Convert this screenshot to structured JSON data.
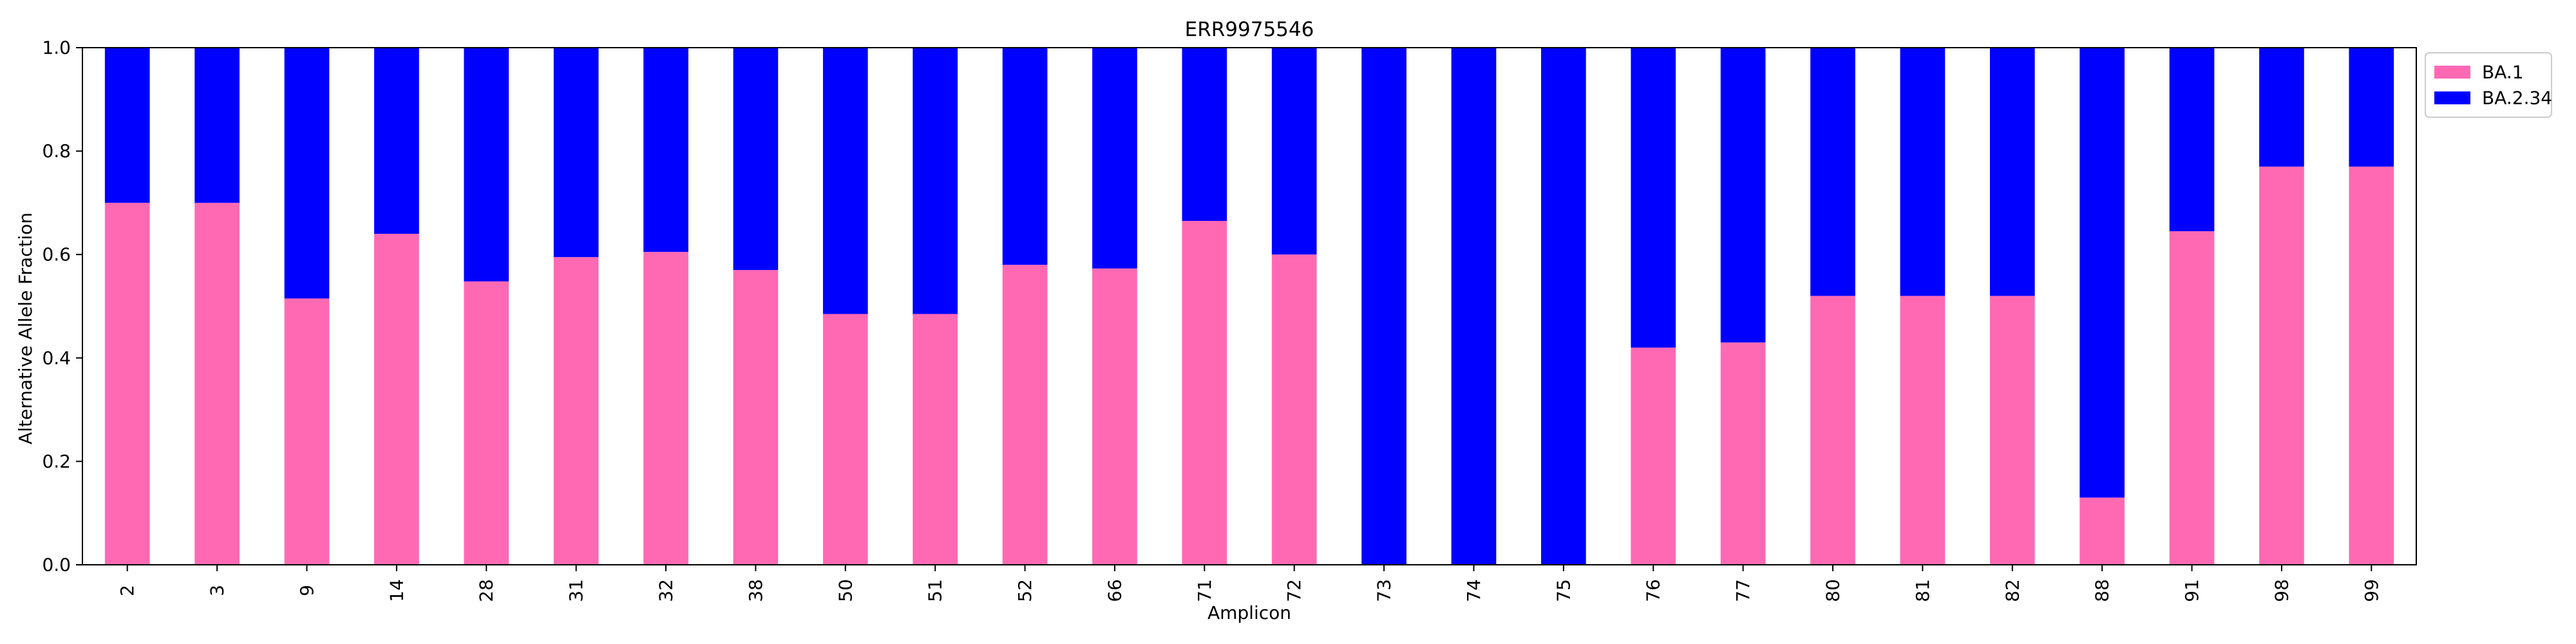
{
  "chart_data": {
    "type": "bar",
    "stacked": true,
    "title": "ERR9975546",
    "xlabel": "Amplicon",
    "ylabel": "Alternative Allele Fraction",
    "ylim": [
      0,
      1.0
    ],
    "yticks": [
      "0.0",
      "0.2",
      "0.4",
      "0.6",
      "0.8",
      "1.0"
    ],
    "grid": false,
    "legend_position": "top-right, outside plot",
    "categories": [
      "2",
      "3",
      "9",
      "14",
      "28",
      "31",
      "32",
      "38",
      "50",
      "51",
      "52",
      "66",
      "71",
      "72",
      "73",
      "74",
      "75",
      "76",
      "77",
      "80",
      "81",
      "82",
      "88",
      "91",
      "98",
      "99"
    ],
    "series": [
      {
        "name": "BA.1",
        "color": "#ff69b4",
        "values": [
          0.7,
          0.7,
          0.515,
          0.64,
          0.548,
          0.595,
          0.605,
          0.57,
          0.485,
          0.485,
          0.58,
          0.573,
          0.665,
          0.6,
          0.0,
          0.0,
          0.0,
          0.42,
          0.43,
          0.52,
          0.52,
          0.52,
          0.13,
          0.645,
          0.77,
          0.77
        ]
      },
      {
        "name": "BA.2.34",
        "color": "#0000ff",
        "values": [
          0.3,
          0.3,
          0.485,
          0.36,
          0.452,
          0.405,
          0.395,
          0.43,
          0.515,
          0.515,
          0.42,
          0.427,
          0.335,
          0.4,
          1.0,
          1.0,
          1.0,
          0.58,
          0.57,
          0.48,
          0.48,
          0.48,
          0.87,
          0.355,
          0.23,
          0.23
        ]
      }
    ]
  }
}
